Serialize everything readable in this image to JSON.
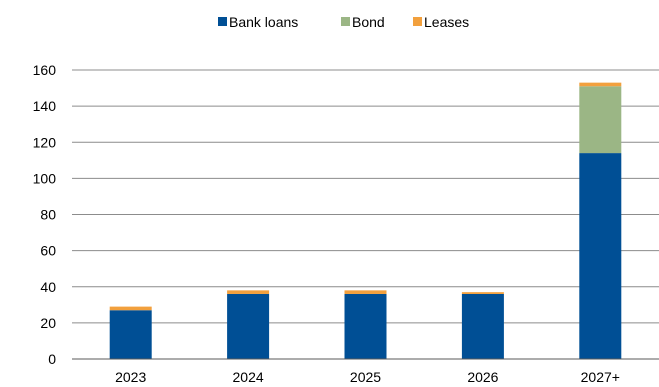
{
  "chart_data": {
    "type": "bar",
    "stacked": true,
    "categories": [
      "2023",
      "2024",
      "2025",
      "2026",
      "2027+"
    ],
    "series": [
      {
        "name": "Bank loans",
        "color": "#004f95",
        "values": [
          27,
          36,
          36,
          36,
          114
        ]
      },
      {
        "name": "Bond",
        "color": "#9bb685",
        "values": [
          0,
          0,
          0,
          0,
          37
        ]
      },
      {
        "name": "Leases",
        "color": "#f2a03d",
        "values": [
          2,
          2,
          2,
          1,
          2
        ]
      }
    ],
    "ylim": [
      0,
      160
    ],
    "yticks": [
      "0",
      "20",
      "40",
      "60",
      "80",
      "100",
      "120",
      "140",
      "160"
    ],
    "grid": true,
    "legend_position": "top-center"
  }
}
